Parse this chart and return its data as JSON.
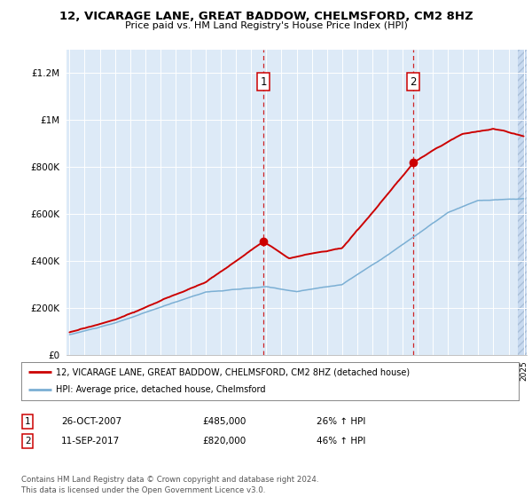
{
  "title": "12, VICARAGE LANE, GREAT BADDOW, CHELMSFORD, CM2 8HZ",
  "subtitle": "Price paid vs. HM Land Registry's House Price Index (HPI)",
  "property_color": "#cc0000",
  "hpi_color": "#7bafd4",
  "background_color": "#ddeaf7",
  "hatch_region_color": "#c8daf0",
  "sale1_date": 2007.82,
  "sale1_price": 485000,
  "sale1_label": "1",
  "sale2_date": 2017.7,
  "sale2_price": 820000,
  "sale2_label": "2",
  "legend_property": "12, VICARAGE LANE, GREAT BADDOW, CHELMSFORD, CM2 8HZ (detached house)",
  "legend_hpi": "HPI: Average price, detached house, Chelmsford",
  "table_rows": [
    {
      "num": "1",
      "date": "26-OCT-2007",
      "price": "£485,000",
      "change": "26% ↑ HPI"
    },
    {
      "num": "2",
      "date": "11-SEP-2017",
      "price": "£820,000",
      "change": "46% ↑ HPI"
    }
  ],
  "footnote": "Contains HM Land Registry data © Crown copyright and database right 2024.\nThis data is licensed under the Open Government Licence v3.0.",
  "ylim": [
    0,
    1300000
  ],
  "yticks": [
    0,
    200000,
    400000,
    600000,
    800000,
    1000000,
    1200000
  ],
  "ytick_labels": [
    "£0",
    "£200K",
    "£400K",
    "£600K",
    "£800K",
    "£1M",
    "£1.2M"
  ],
  "xstart": 1995,
  "xend": 2025
}
